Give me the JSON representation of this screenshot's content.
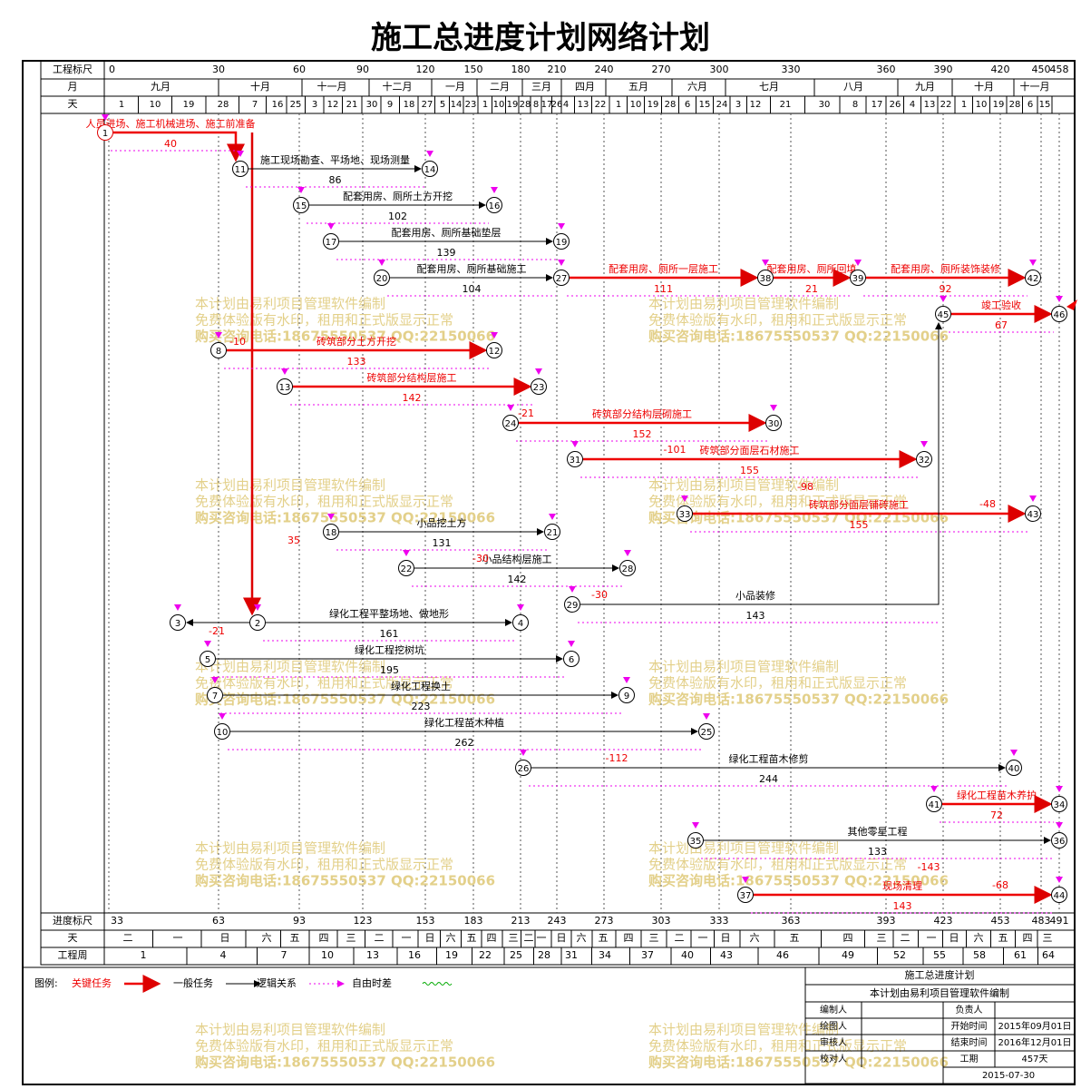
{
  "title": "施工总进度计划网络计划",
  "row_labels": [
    "工程标尺",
    "月",
    "天",
    "进度标尺",
    "天",
    "工程周"
  ],
  "scale": [
    0,
    30,
    60,
    90,
    120,
    150,
    180,
    210,
    240,
    270,
    300,
    330,
    360,
    390,
    420,
    450,
    458
  ],
  "months": [
    "九月",
    "十月",
    "十一月",
    "十二月",
    "一月",
    "二月",
    "三月",
    "四月",
    "五月",
    "六月",
    "七月",
    "八月",
    "九月",
    "十月",
    "十一月"
  ],
  "days": [
    1,
    10,
    19,
    28,
    7,
    16,
    25,
    3,
    12,
    21,
    30,
    9,
    18,
    27,
    5,
    14,
    23,
    1,
    10,
    19,
    28,
    8,
    17,
    26,
    4,
    13,
    22,
    1,
    10,
    19,
    28,
    6,
    15,
    24,
    3,
    12,
    21,
    30,
    8,
    17,
    26,
    4,
    13,
    22,
    1,
    10,
    19,
    28,
    6,
    15
  ],
  "progress_scale": [
    33,
    63,
    93,
    123,
    153,
    183,
    213,
    243,
    273,
    303,
    333,
    363,
    393,
    423,
    453,
    483,
    491
  ],
  "weekdays": [
    "二",
    "一",
    "日",
    "六",
    "五",
    "四",
    "三",
    "二",
    "一",
    "日",
    "六",
    "五",
    "四",
    "三",
    "二",
    "一",
    "日",
    "六",
    "五",
    "四",
    "三",
    "二",
    "一",
    "日",
    "六",
    "五",
    "四",
    "三",
    "二",
    "一",
    "日",
    "六",
    "五",
    "四",
    "三"
  ],
  "weeks": [
    1,
    4,
    7,
    10,
    13,
    16,
    19,
    22,
    25,
    28,
    31,
    34,
    37,
    40,
    43,
    46,
    49,
    52,
    55,
    58,
    61,
    64
  ],
  "nodes": [
    1,
    11,
    14,
    15,
    16,
    17,
    19,
    20,
    27,
    38,
    39,
    42,
    45,
    46,
    8,
    12,
    13,
    23,
    24,
    30,
    31,
    32,
    33,
    43,
    18,
    21,
    22,
    28,
    29,
    3,
    2,
    4,
    5,
    6,
    7,
    9,
    10,
    25,
    26,
    40,
    41,
    34,
    35,
    36,
    37,
    44
  ],
  "tasks": [
    {
      "from": 1,
      "to": 11,
      "label": "人员进场、施工机械进场、施工前准备",
      "duration": 40,
      "critical": true
    },
    {
      "from": 11,
      "to": 14,
      "label": "施工现场勘查、平场地、现场测量",
      "duration": 86,
      "critical": false
    },
    {
      "from": 15,
      "to": 16,
      "label": "配套用房、厕所土方开挖",
      "duration": 102,
      "critical": false
    },
    {
      "from": 17,
      "to": 19,
      "label": "配套用房、厕所基础垫层",
      "duration": 139,
      "critical": false
    },
    {
      "from": 20,
      "to": 27,
      "label": "配套用房、厕所基础施工",
      "duration": 104,
      "critical": false
    },
    {
      "from": 27,
      "to": 38,
      "label": "配套用房、厕所一层施工",
      "duration": 111,
      "critical": true
    },
    {
      "from": 38,
      "to": 39,
      "label": "配套用房、厕所回填",
      "duration": 21,
      "critical": true
    },
    {
      "from": 39,
      "to": 42,
      "label": "配套用房、厕所装饰装修",
      "duration": 92,
      "critical": true
    },
    {
      "from": 45,
      "to": 46,
      "label": "竣工验收",
      "duration": 67,
      "critical": true
    },
    {
      "from": 8,
      "to": 12,
      "label": "砖筑部分土方开挖",
      "duration": 133,
      "critical": true
    },
    {
      "from": 13,
      "to": 23,
      "label": "砖筑部分结构层施工",
      "duration": 142,
      "critical": true
    },
    {
      "from": 24,
      "to": 30,
      "label": "砖筑部分结构层砌施工",
      "duration": 152,
      "critical": true
    },
    {
      "from": 31,
      "to": 32,
      "label": "砖筑部分面层石材施工",
      "duration": 155,
      "critical": true
    },
    {
      "from": 33,
      "to": 43,
      "label": "砖筑部分面层铺砖施工",
      "duration": 155,
      "critical": true
    },
    {
      "from": 18,
      "to": 21,
      "label": "小品挖土方",
      "duration": 131,
      "critical": false
    },
    {
      "from": 22,
      "to": 28,
      "label": "小品结构层施工",
      "duration": 142,
      "critical": false
    },
    {
      "from": 29,
      "to": 45,
      "label": "小品装修",
      "duration": 143,
      "critical": false
    },
    {
      "from": 2,
      "to": 4,
      "label": "绿化工程平整场地、做地形",
      "duration": 161,
      "critical": false
    },
    {
      "from": 5,
      "to": 6,
      "label": "绿化工程挖树坑",
      "duration": 195,
      "critical": false
    },
    {
      "from": 7,
      "to": 9,
      "label": "绿化工程换土",
      "duration": 223,
      "critical": false
    },
    {
      "from": 10,
      "to": 25,
      "label": "绿化工程苗木种植",
      "duration": 262,
      "critical": false
    },
    {
      "from": 26,
      "to": 40,
      "label": "绿化工程苗木修剪",
      "duration": 244,
      "critical": false
    },
    {
      "from": 41,
      "to": 34,
      "label": "绿化工程苗木养护",
      "duration": 72,
      "critical": true
    },
    {
      "from": 35,
      "to": 36,
      "label": "其他零星工程",
      "duration": 133,
      "critical": false
    },
    {
      "from": 37,
      "to": 44,
      "label": "现场清理",
      "duration": 143,
      "critical": true
    }
  ],
  "floats": [
    -10,
    -21,
    -101,
    -98,
    -48,
    35,
    -30,
    -30,
    -21,
    -112,
    -143,
    -68
  ],
  "legend": {
    "title": "图例:",
    "items": [
      "关键任务",
      "一般任务",
      "逻辑关系",
      "自由时差"
    ]
  },
  "watermark": [
    "本计划由易利项目管理软件编制",
    "免费体验版有水印，租用和正式版显示正常",
    "购买咨询电话:18675550537 QQ:22150066"
  ],
  "title_block": {
    "name": "施工总进度计划",
    "note": "本计划由易利项目管理软件编制",
    "rows": [
      [
        "编制人",
        "",
        "负责人",
        ""
      ],
      [
        "绘图人",
        "",
        "开始时间",
        "2015年09月01日"
      ],
      [
        "审核人",
        "",
        "结束时间",
        "2016年12月01日"
      ],
      [
        "校对人",
        "",
        "工期",
        "457天"
      ]
    ],
    "date": "2015-07-30"
  }
}
